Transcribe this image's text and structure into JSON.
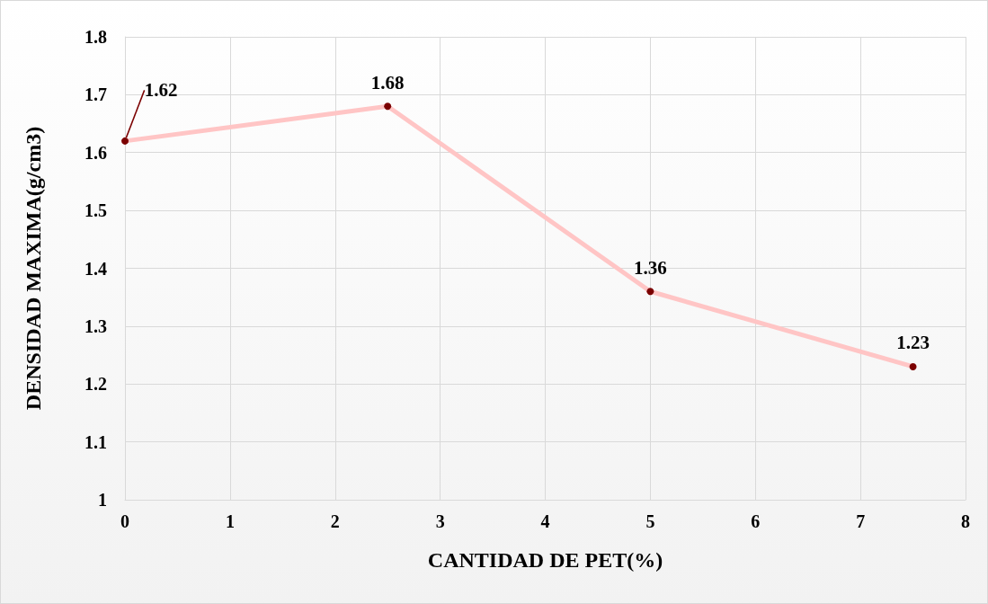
{
  "chart_data": {
    "type": "line",
    "xlabel": "CANTIDAD DE PET(%)",
    "ylabel": "DENSIDAD MAXIMA(g/cm3)",
    "x": [
      0,
      2.5,
      5,
      7.5
    ],
    "series": [
      {
        "color": "#ffc5c5",
        "values": [
          1.62,
          1.68,
          1.36,
          1.23
        ]
      }
    ],
    "xlim": [
      0,
      8
    ],
    "xticks": [
      0,
      1,
      2,
      3,
      4,
      5,
      6,
      7,
      8
    ],
    "ylim": [
      1,
      1.8
    ],
    "yticks": [
      1,
      1.1,
      1.2,
      1.3,
      1.4,
      1.5,
      1.6,
      1.7,
      1.8
    ],
    "grid": true,
    "marker": "circle",
    "line_style": "solid",
    "data_labels": true
  }
}
